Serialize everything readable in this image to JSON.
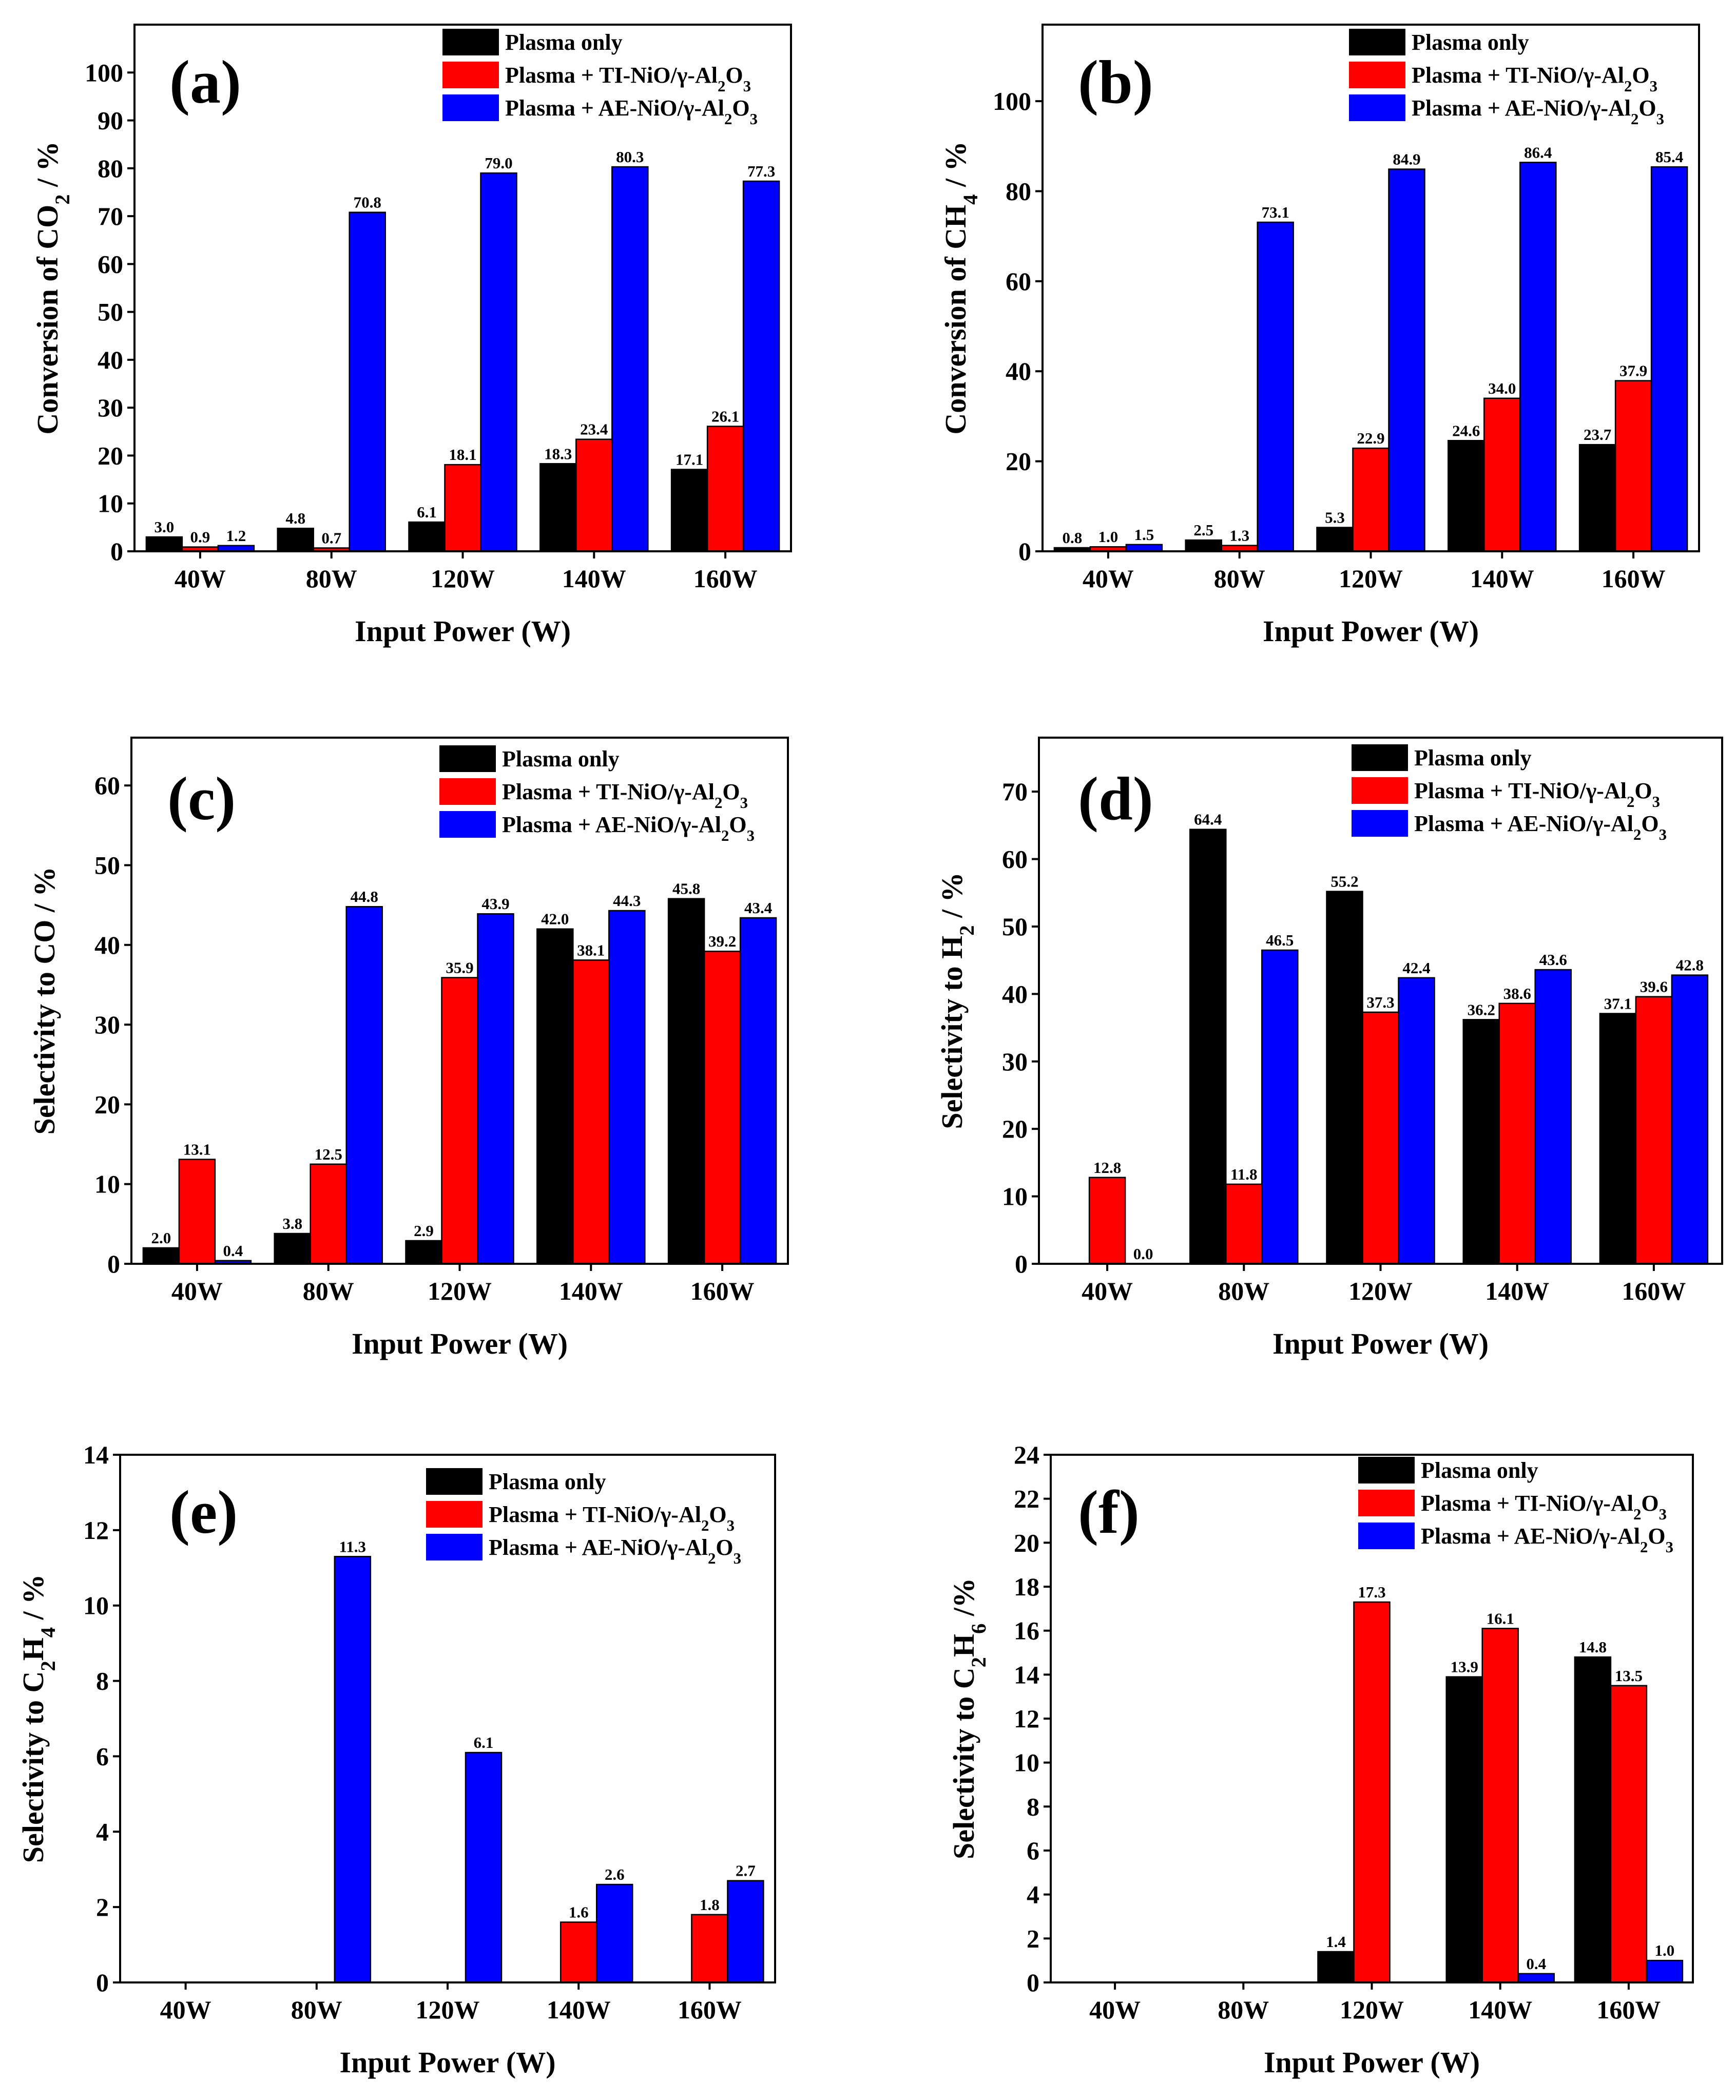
{
  "figure": {
    "legend": [
      {
        "text": "Plasma only",
        "color": "#000000"
      },
      {
        "text": "Plasma + TI-NiO/γ-Al",
        "sub": "2",
        "text2": "O",
        "sub2": "3",
        "color": "#ff0000"
      },
      {
        "text": "Plasma + AE-NiO/γ-Al",
        "sub": "2",
        "text2": "O",
        "sub2": "3",
        "color": "#0000ff"
      }
    ]
  },
  "chart_data": [
    {
      "type": "bar",
      "panel": "(a)",
      "categories": [
        "40W",
        "80W",
        "120W",
        "140W",
        "160W"
      ],
      "xlabel": "Input Power (W)",
      "ylabel": [
        {
          "t": "Conversion of CO"
        },
        {
          "t": "2",
          "sub": true
        },
        {
          "t": " / %"
        }
      ],
      "ylim": [
        0,
        110
      ],
      "yticks": [
        0,
        10,
        20,
        30,
        40,
        50,
        60,
        70,
        80,
        90,
        100
      ],
      "series": [
        {
          "name": "Plasma only",
          "values": [
            3.0,
            4.8,
            6.1,
            18.3,
            17.1
          ],
          "labels": [
            "3.0",
            "4.8",
            "6.1",
            "18.3",
            "17.1"
          ]
        },
        {
          "name": "Plasma + TI-NiO/γ-Al2O3",
          "values": [
            0.9,
            0.7,
            18.1,
            23.4,
            26.1
          ],
          "labels": [
            "0.9",
            "0.7",
            "18.1",
            "23.4",
            "26.1"
          ]
        },
        {
          "name": "Plasma + AE-NiO/γ-Al2O3",
          "values": [
            1.2,
            70.8,
            79.0,
            80.3,
            77.3
          ],
          "labels": [
            "1.2",
            "70.8",
            "79.0",
            "80.3",
            "77.3"
          ]
        }
      ]
    },
    {
      "type": "bar",
      "panel": "(b)",
      "categories": [
        "40W",
        "80W",
        "120W",
        "140W",
        "160W"
      ],
      "xlabel": "Input Power (W)",
      "ylabel": [
        {
          "t": "Conversion of CH"
        },
        {
          "t": "4",
          "sub": true
        },
        {
          "t": " / %"
        }
      ],
      "ylim": [
        0,
        117
      ],
      "yticks": [
        0,
        20,
        40,
        60,
        80,
        100
      ],
      "series": [
        {
          "name": "Plasma only",
          "values": [
            0.8,
            2.5,
            5.3,
            24.6,
            23.7
          ],
          "labels": [
            "0.8",
            "2.5",
            "5.3",
            "24.6",
            "23.7"
          ]
        },
        {
          "name": "Plasma + TI-NiO/γ-Al2O3",
          "values": [
            1.0,
            1.3,
            22.9,
            34.0,
            37.9
          ],
          "labels": [
            "1.0",
            "1.3",
            "22.9",
            "34.0",
            "37.9"
          ]
        },
        {
          "name": "Plasma + AE-NiO/γ-Al2O3",
          "values": [
            1.5,
            73.1,
            84.9,
            86.4,
            85.4
          ],
          "labels": [
            "1.5",
            "73.1",
            "84.9",
            "86.4",
            "85.4"
          ]
        }
      ]
    },
    {
      "type": "bar",
      "panel": "(c)",
      "categories": [
        "40W",
        "80W",
        "120W",
        "140W",
        "160W"
      ],
      "xlabel": "Input Power (W)",
      "ylabel": [
        {
          "t": "Selectivity to CO / %"
        }
      ],
      "ylim": [
        0,
        66
      ],
      "yticks": [
        0,
        10,
        20,
        30,
        40,
        50,
        60
      ],
      "series": [
        {
          "name": "Plasma only",
          "values": [
            2.0,
            3.8,
            2.9,
            42.0,
            45.8
          ],
          "labels": [
            "2.0",
            "3.8",
            "2.9",
            "42.0",
            "45.8"
          ]
        },
        {
          "name": "Plasma + TI-NiO/γ-Al2O3",
          "values": [
            13.1,
            12.5,
            35.9,
            38.1,
            39.2
          ],
          "labels": [
            "13.1",
            "12.5",
            "35.9",
            "38.1",
            "39.2"
          ]
        },
        {
          "name": "Plasma + AE-NiO/γ-Al2O3",
          "values": [
            0.4,
            44.8,
            43.9,
            44.3,
            43.4
          ],
          "labels": [
            "0.4",
            "44.8",
            "43.9",
            "44.3",
            "43.4"
          ]
        }
      ]
    },
    {
      "type": "bar",
      "panel": "(d)",
      "categories": [
        "40W",
        "80W",
        "120W",
        "140W",
        "160W"
      ],
      "xlabel": "Input Power (W)",
      "ylabel": [
        {
          "t": "Selectivity to H"
        },
        {
          "t": "2",
          "sub": true
        },
        {
          "t": " / %"
        }
      ],
      "ylim": [
        0,
        78
      ],
      "yticks": [
        0,
        10,
        20,
        30,
        40,
        50,
        60,
        70
      ],
      "series": [
        {
          "name": "Plasma only",
          "values": [
            0,
            64.4,
            55.2,
            36.2,
            37.1
          ],
          "labels": [
            null,
            "64.4",
            "55.2",
            "36.2",
            "37.1"
          ]
        },
        {
          "name": "Plasma + TI-NiO/γ-Al2O3",
          "values": [
            12.8,
            11.8,
            37.3,
            38.6,
            39.6
          ],
          "labels": [
            "12.8",
            "11.8",
            "37.3",
            "38.6",
            "39.6"
          ]
        },
        {
          "name": "Plasma + AE-NiO/γ-Al2O3",
          "values": [
            0.0,
            46.5,
            42.4,
            43.6,
            42.8
          ],
          "labels": [
            "0.0",
            "46.5",
            "42.4",
            "43.6",
            "42.8"
          ]
        }
      ]
    },
    {
      "type": "bar",
      "panel": "(e)",
      "categories": [
        "40W",
        "80W",
        "120W",
        "140W",
        "160W"
      ],
      "xlabel": "Input Power (W)",
      "ylabel": [
        {
          "t": "Selectivity to C"
        },
        {
          "t": "2",
          "sub": true
        },
        {
          "t": "H"
        },
        {
          "t": "4",
          "sub": true
        },
        {
          "t": " / %"
        }
      ],
      "ylim": [
        0,
        14
      ],
      "yticks": [
        0,
        2,
        4,
        6,
        8,
        10,
        12,
        14
      ],
      "series": [
        {
          "name": "Plasma only",
          "values": [
            0,
            0,
            0,
            0,
            0
          ],
          "labels": [
            null,
            null,
            null,
            null,
            null
          ]
        },
        {
          "name": "Plasma + TI-NiO/γ-Al2O3",
          "values": [
            0,
            0,
            0,
            1.6,
            1.8
          ],
          "labels": [
            null,
            null,
            null,
            "1.6",
            "1.8"
          ]
        },
        {
          "name": "Plasma + AE-NiO/γ-Al2O3",
          "values": [
            0,
            11.3,
            6.1,
            2.6,
            2.7
          ],
          "labels": [
            null,
            "11.3",
            "6.1",
            "2.6",
            "2.7"
          ]
        }
      ]
    },
    {
      "type": "bar",
      "panel": "(f)",
      "categories": [
        "40W",
        "80W",
        "120W",
        "140W",
        "160W"
      ],
      "xlabel": "Input Power (W)",
      "ylabel": [
        {
          "t": "Selectivity to C"
        },
        {
          "t": "2",
          "sub": true
        },
        {
          "t": "H"
        },
        {
          "t": "6",
          "sub": true
        },
        {
          "t": " /%"
        }
      ],
      "ylim": [
        0,
        24
      ],
      "yticks": [
        0,
        2,
        4,
        6,
        8,
        10,
        12,
        14,
        16,
        18,
        20,
        22,
        24
      ],
      "series": [
        {
          "name": "Plasma only",
          "values": [
            0,
            0,
            1.4,
            13.9,
            14.8
          ],
          "labels": [
            null,
            null,
            "1.4",
            "13.9",
            "14.8"
          ]
        },
        {
          "name": "Plasma + TI-NiO/γ-Al2O3",
          "values": [
            0,
            0,
            17.3,
            16.1,
            13.5
          ],
          "labels": [
            null,
            null,
            "17.3",
            "16.1",
            "13.5"
          ]
        },
        {
          "name": "Plasma + AE-NiO/γ-Al2O3",
          "values": [
            0,
            0,
            0,
            0.4,
            1.0
          ],
          "labels": [
            null,
            null,
            null,
            "0.4",
            "1.0"
          ]
        }
      ]
    }
  ]
}
